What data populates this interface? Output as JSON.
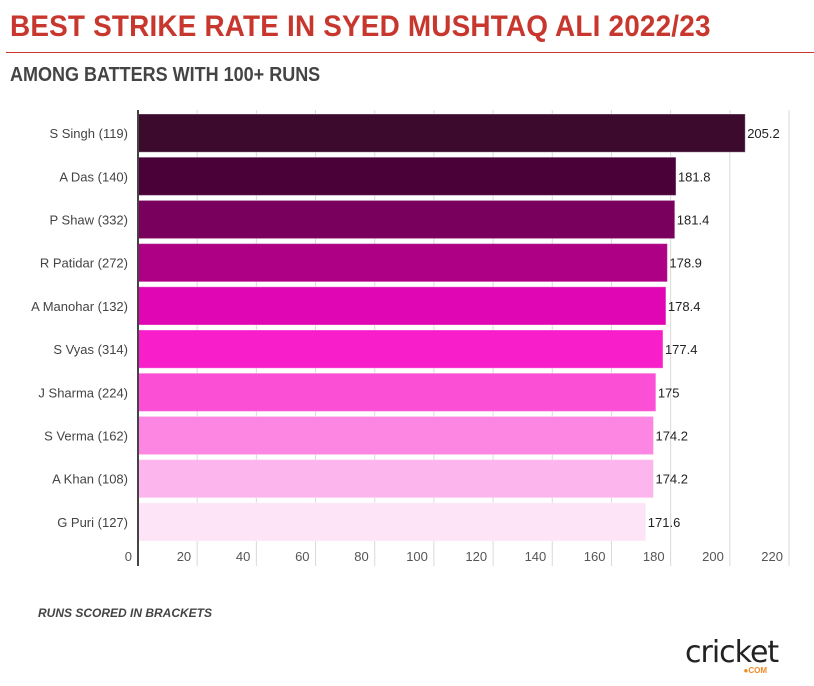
{
  "header": {
    "title": "BEST STRIKE RATE IN SYED MUSHTAQ ALI 2022/23",
    "subtitle": "AMONG BATTERS WITH 100+ RUNS"
  },
  "footnote": "RUNS SCORED IN BRACKETS",
  "logo": {
    "text": "cricket",
    "suffix": "●COM",
    "name": "cricket.com"
  },
  "chart_data": {
    "type": "bar",
    "orientation": "horizontal",
    "title": "BEST STRIKE RATE IN SYED MUSHTAQ ALI 2022/23",
    "subtitle": "AMONG BATTERS WITH 100+ RUNS",
    "xlabel": "",
    "ylabel": "",
    "xlim": [
      0,
      220
    ],
    "x_ticks": [
      0,
      20,
      40,
      60,
      80,
      100,
      120,
      140,
      160,
      180,
      200,
      220
    ],
    "grid": true,
    "legend": "none",
    "categories": [
      "S Singh (119)",
      "A Das (140)",
      "P Shaw (332)",
      "R Patidar (272)",
      "A Manohar (132)",
      "S Vyas (314)",
      "J Sharma (224)",
      "S Verma (162)",
      "A Khan (108)",
      "G Puri (127)"
    ],
    "values": [
      205.2,
      181.8,
      181.4,
      178.9,
      178.4,
      177.4,
      175,
      174.2,
      174.2,
      171.6
    ],
    "value_labels": [
      "205.2",
      "181.8",
      "181.4",
      "178.9",
      "178.4",
      "177.4",
      "175",
      "174.2",
      "174.2",
      "171.6"
    ],
    "colors": [
      "#3b0a2d",
      "#4a0138",
      "#79005c",
      "#ad0085",
      "#e006b3",
      "#f81ec9",
      "#fb50d6",
      "#fc86e2",
      "#fdb6ed",
      "#fde4f7"
    ],
    "annotations": [
      "RUNS SCORED IN BRACKETS"
    ]
  }
}
